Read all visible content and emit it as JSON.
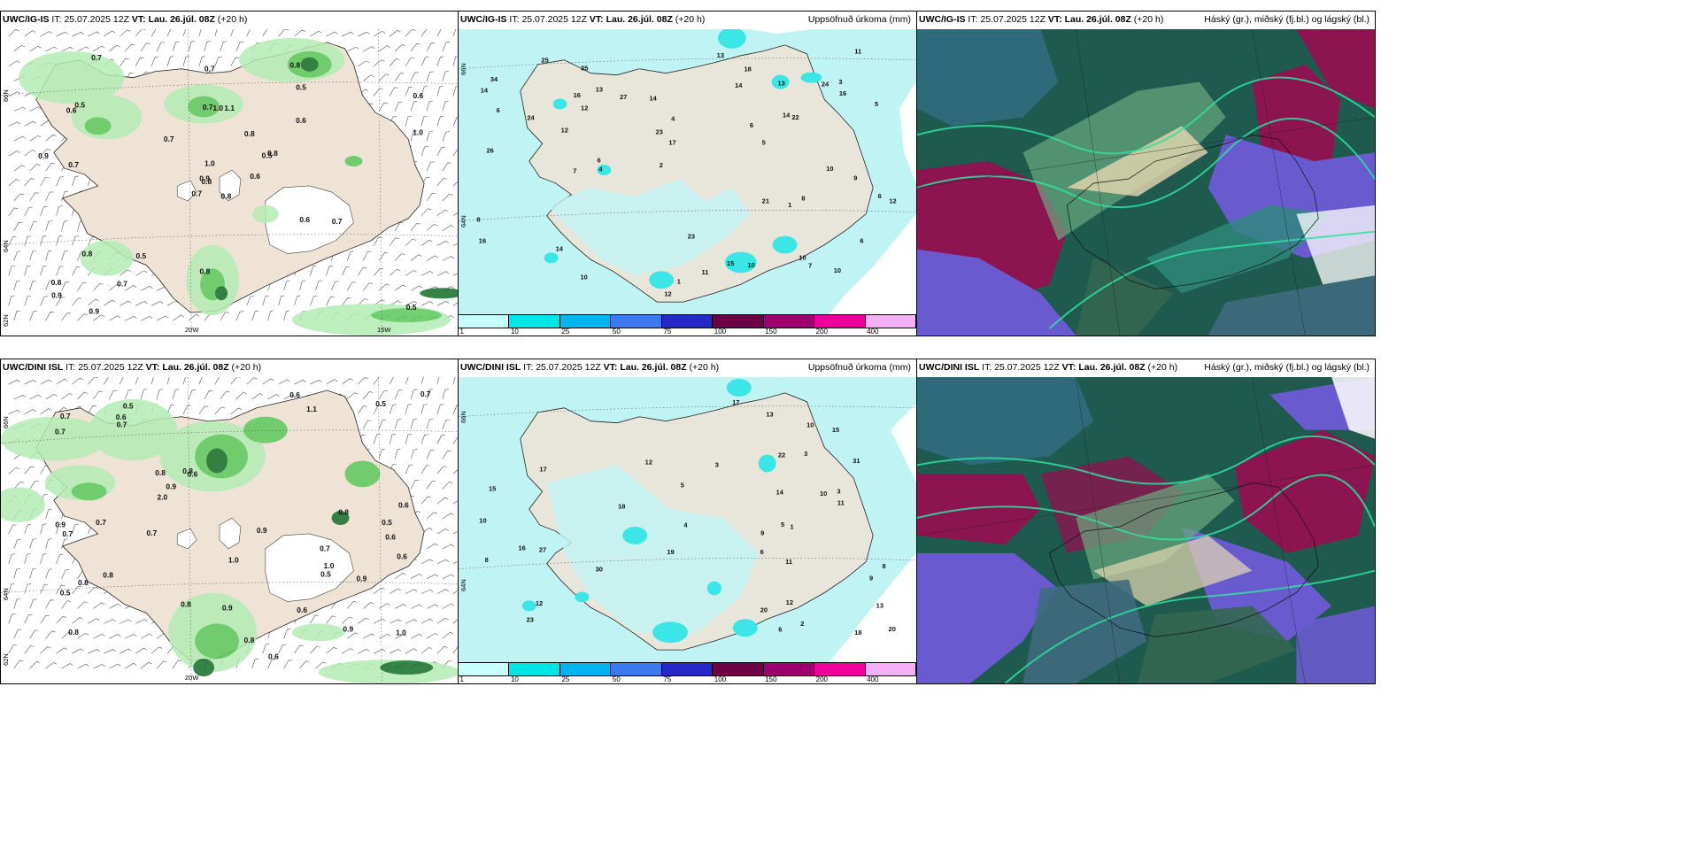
{
  "panels": [
    {
      "model": "UWC/IG-IS",
      "it_label": "IT:",
      "it_value": "25.07.2025 12Z",
      "vt_label": "VT:",
      "vt_value": "Lau. 26.júl. 08Z",
      "lead": "(+20 h)",
      "subtitle": ""
    },
    {
      "model": "UWC/IG-IS",
      "it_label": "IT:",
      "it_value": "25.07.2025 12Z",
      "vt_label": "VT:",
      "vt_value": "Lau. 26.júl. 08Z",
      "lead": "(+20 h)",
      "subtitle": "Uppsöfnuð úrkoma (mm)"
    },
    {
      "model": "UWC/IG-IS",
      "it_label": "IT:",
      "it_value": "25.07.2025 12Z",
      "vt_label": "VT:",
      "vt_value": "Lau. 26.júl. 08Z",
      "lead": "(+20 h)",
      "subtitle": "Háský (gr.), miðský (fj.bl.) og lágský (bl.)"
    },
    {
      "model": "UWC/DINI ISL",
      "it_label": "IT:",
      "it_value": "25.07.2025 12Z",
      "vt_label": "VT:",
      "vt_value": "Lau. 26.júl. 08Z",
      "lead": "(+20 h)",
      "subtitle": ""
    },
    {
      "model": "UWC/DINI ISL",
      "it_label": "IT:",
      "it_value": "25.07.2025 12Z",
      "vt_label": "VT:",
      "vt_value": "Lau. 26.júl. 08Z",
      "lead": "(+20 h)",
      "subtitle": "Uppsöfnuð úrkoma (mm)"
    },
    {
      "model": "UWC/DINI ISL",
      "it_label": "IT:",
      "it_value": "25.07.2025 12Z",
      "vt_label": "VT:",
      "vt_value": "Lau. 26.júl. 08Z",
      "lead": "(+20 h)",
      "subtitle": "Háský (gr.), miðský (fj.bl.) og lágský (bl.)"
    }
  ],
  "axis_labels": {
    "lon_20w": "20W",
    "lon_15w": "15W",
    "lat_66n": "66N",
    "lat_64n": "64N",
    "lat_62n": "62N"
  },
  "colorbar": {
    "colors": [
      "#c8ffff",
      "#00e6e6",
      "#00b4f0",
      "#3c78f0",
      "#2828c8",
      "#6e0046",
      "#a0006e",
      "#f0009b",
      "#f5aff5"
    ],
    "labels": [
      "1",
      "10",
      "25",
      "50",
      "75",
      "100",
      "150",
      "200",
      "400"
    ]
  },
  "colors": {
    "land": "#efe3d6",
    "precip_light": "#c0f4f4",
    "precip_mid": "#3ce6e6",
    "precip_strong": "#00b4d8",
    "rain_light": "#b4ecb4",
    "rain_mid": "#5ac85a",
    "rain_dark": "#146e28",
    "cloud_high": "#1e5a4e",
    "cloud_mid": "#6a5ad0",
    "cloud_low": "#8c1450"
  },
  "rain_labels_ig": [
    "0.8",
    "0.6",
    "0.8",
    "0.8",
    "0.5",
    "0.5",
    "0.8",
    "1.1",
    "0.5",
    "0.6",
    "0.7",
    "0.5",
    "0.7",
    "0.6",
    "0.7",
    "0.6",
    "0.9",
    "0.7",
    "0.8",
    "0.8",
    "0.7",
    "0.9",
    "0.7",
    "1.0",
    "0.8",
    "0.7",
    "0.5",
    "0.7",
    "0.9",
    "0.6",
    "1.0",
    "0.9",
    "0.8",
    "1.0"
  ],
  "rain_labels_dini": [
    "0.7",
    "0.6",
    "0.8",
    "0.5",
    "0.6",
    "0.9",
    "0.5",
    "1.1",
    "0.8",
    "0.6",
    "0.7",
    "0.9",
    "0.7",
    "1.0",
    "0.8",
    "0.6",
    "1.0",
    "0.9",
    "0.8",
    "0.8",
    "0.7",
    "0.5",
    "2.0",
    "0.6",
    "0.6",
    "0.6",
    "1.0",
    "0.7",
    "0.7",
    "0.8",
    "0.8",
    "0.6",
    "0.9",
    "0.7",
    "0.5",
    "0.9",
    "0.5",
    "0.7",
    "0.9",
    "0.8"
  ],
  "precip_labels_ig": [
    "6",
    "12",
    "5",
    "1",
    "24",
    "12",
    "21",
    "4",
    "3",
    "12",
    "6",
    "13",
    "14",
    "14",
    "26",
    "10",
    "6",
    "14",
    "10",
    "15",
    "7",
    "9",
    "17",
    "23",
    "13",
    "12",
    "16",
    "18",
    "25",
    "7",
    "8",
    "10",
    "11",
    "24",
    "34",
    "35",
    "27",
    "14",
    "13",
    "16",
    "22",
    "16",
    "23",
    "10",
    "11",
    "5",
    "14",
    "10",
    "6",
    "8",
    "4",
    "6",
    "2",
    "1"
  ],
  "precip_labels_dini": [
    "6",
    "8",
    "10",
    "9",
    "20",
    "3",
    "3",
    "5",
    "13",
    "2",
    "5",
    "9",
    "8",
    "11",
    "30",
    "18",
    "15",
    "16",
    "10",
    "12",
    "19",
    "10",
    "14",
    "13",
    "11",
    "12",
    "17",
    "22",
    "20",
    "27",
    "31",
    "17",
    "15",
    "12",
    "18",
    "23",
    "3",
    "4",
    "1",
    "6"
  ]
}
